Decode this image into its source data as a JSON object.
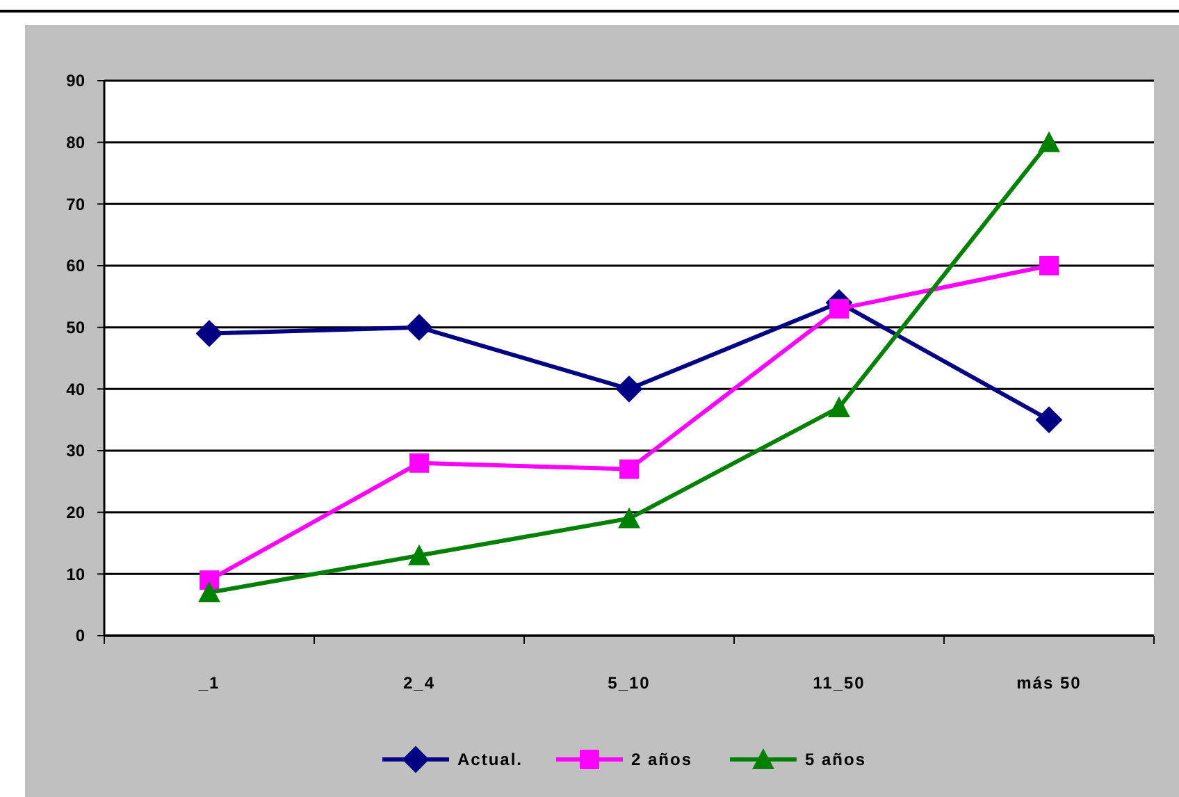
{
  "chart_data": {
    "type": "line",
    "categories": [
      "_1",
      "2_4",
      "5_10",
      "11_50",
      "más 50"
    ],
    "series": [
      {
        "name": "Actual.",
        "color": "#000080",
        "marker": "diamond",
        "values": [
          49,
          50,
          40,
          54,
          35
        ]
      },
      {
        "name": "2 años",
        "color": "#ff00ff",
        "marker": "square",
        "values": [
          9,
          28,
          27,
          53,
          60
        ]
      },
      {
        "name": "5 años",
        "color": "#008000",
        "marker": "triangle",
        "values": [
          7,
          13,
          19,
          37,
          80
        ]
      }
    ],
    "ylim": [
      0,
      90
    ],
    "yticks": [
      0,
      10,
      20,
      30,
      40,
      50,
      60,
      70,
      80,
      90
    ],
    "grid": "y",
    "legend": "bottom",
    "line_style": "solid"
  }
}
